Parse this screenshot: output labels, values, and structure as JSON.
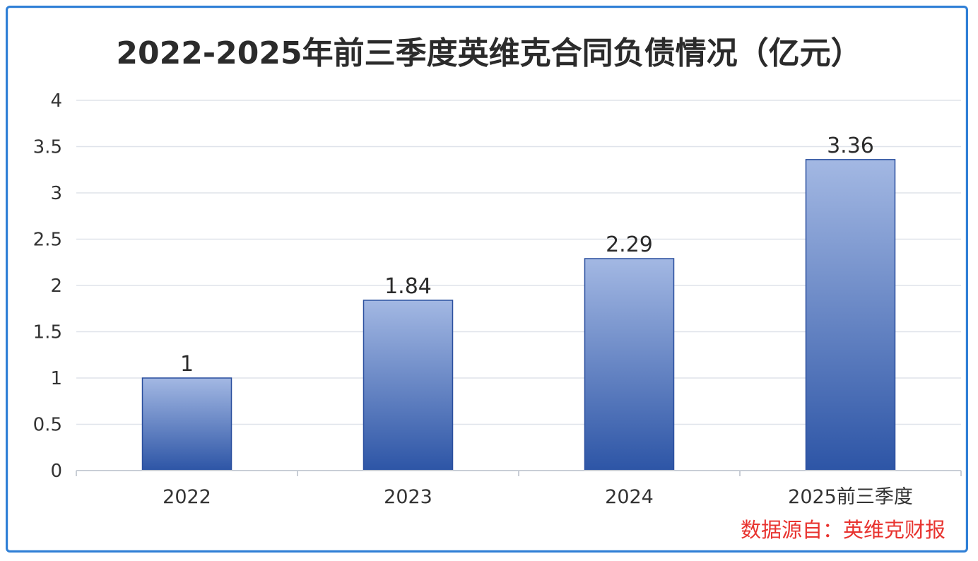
{
  "chart_data": {
    "type": "bar",
    "title": "2022-2025年前三季度英维克合同负债情况（亿元）",
    "categories": [
      "2022",
      "2023",
      "2024",
      "2025前三季度"
    ],
    "values": [
      1,
      1.84,
      2.29,
      3.36
    ],
    "data_labels": [
      "1",
      "1.84",
      "2.29",
      "3.36"
    ],
    "y_ticks": [
      "0",
      "0.5",
      "1",
      "1.5",
      "2",
      "2.5",
      "3",
      "3.5",
      "4"
    ],
    "ylim": [
      0,
      4
    ],
    "xlabel": "",
    "ylabel": "",
    "grid": true,
    "colors": {
      "bar_top": "#a3b8e3",
      "bar_bottom": "#2d55a6",
      "bar_border": "#2a4f9e",
      "grid": "#dfe3ea",
      "frame": "#2f7fd6",
      "source_text": "#e8332f"
    }
  },
  "source": "数据源自：英维克财报"
}
